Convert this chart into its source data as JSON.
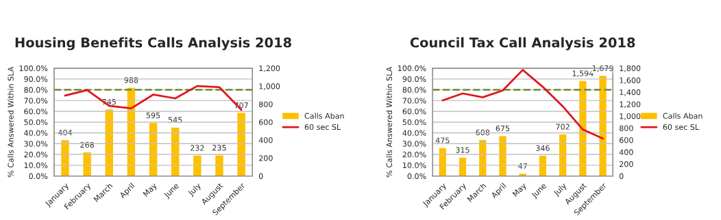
{
  "chart_data": [
    {
      "type": "bar",
      "title": "Housing Benefits Calls Analysis 2018",
      "ylabel": "% Calls Answered Within SLA",
      "categories": [
        "January",
        "February",
        "March",
        "April",
        "May",
        "June",
        "July",
        "August",
        "September"
      ],
      "series": [
        {
          "name": "Calls Aban",
          "axis": "y2",
          "color": "#ffc000",
          "values": [
            404,
            268,
            745,
            988,
            595,
            545,
            232,
            235,
            707
          ],
          "value_labels": [
            "404",
            "268",
            "745",
            "988",
            "595",
            "545",
            "232",
            "235",
            "707"
          ]
        },
        {
          "name": "60 sec SL",
          "type": "line",
          "color": "#e0141b",
          "values": [
            74.6,
            79.7,
            65.1,
            62.7,
            75.5,
            72.0,
            83.5,
            82.4,
            61.4
          ]
        }
      ],
      "ylim": [
        0,
        100
      ],
      "yticks": [
        {
          "value": 0,
          "label": "0.0%"
        },
        {
          "value": 10,
          "label": "10.0%"
        },
        {
          "value": 20,
          "label": "20.0%"
        },
        {
          "value": 30,
          "label": "30.0%"
        },
        {
          "value": 40,
          "label": "40.0%"
        },
        {
          "value": 50,
          "label": "50.0%"
        },
        {
          "value": 60,
          "label": "60.0%"
        },
        {
          "value": 70,
          "label": "70.0%"
        },
        {
          "value": 80,
          "label": "80.0%"
        },
        {
          "value": 90,
          "label": "90.0%"
        },
        {
          "value": 100,
          "label": "100.0%"
        }
      ],
      "y2lim": [
        0,
        1200
      ],
      "y2ticks": [
        0,
        200,
        400,
        600,
        800,
        {
          "value": 1000,
          "label": "1,000"
        },
        {
          "value": 1200,
          "label": "1,200"
        }
      ],
      "ref_lines": [
        {
          "axis": "y",
          "value": 80,
          "color": "#77933c",
          "line_style": "dashed"
        }
      ],
      "grid": "y",
      "legend": "right",
      "marker": "none",
      "line_style": "solid"
    },
    {
      "type": "bar",
      "title": "Council Tax Call Analysis 2018",
      "ylabel": "% Calls Answered Within SLA",
      "categories": [
        "January",
        "February",
        "March",
        "April",
        "May",
        "June",
        "July",
        "August",
        "September"
      ],
      "series": [
        {
          "name": "Calls Aban",
          "axis": "y2",
          "color": "#ffc000",
          "values": [
            475,
            315,
            608,
            675,
            47,
            346,
            702,
            1594,
            1679
          ],
          "value_labels": [
            "475",
            "315",
            "608",
            "675",
            "47",
            "346",
            "702",
            "1,594",
            "1,679"
          ]
        },
        {
          "name": "60 sec SL",
          "type": "line",
          "color": "#e0141b",
          "values": [
            70.1,
            76.6,
            73.0,
            79.3,
            98.4,
            82.7,
            64.6,
            43.1,
            34.7
          ]
        }
      ],
      "ylim": [
        0,
        100
      ],
      "yticks": [
        {
          "value": 0,
          "label": "0.0%"
        },
        {
          "value": 10,
          "label": "10.0%"
        },
        {
          "value": 20,
          "label": "20.0%"
        },
        {
          "value": 30,
          "label": "30.0%"
        },
        {
          "value": 40,
          "label": "40.0%"
        },
        {
          "value": 50,
          "label": "50.0%"
        },
        {
          "value": 60,
          "label": "60.0%"
        },
        {
          "value": 70,
          "label": "70.0%"
        },
        {
          "value": 80,
          "label": "80.0%"
        },
        {
          "value": 90,
          "label": "90.0%"
        },
        {
          "value": 100,
          "label": "100.0%"
        }
      ],
      "y2lim": [
        0,
        1800
      ],
      "y2ticks": [
        0,
        200,
        400,
        600,
        800,
        {
          "value": 1000,
          "label": "1,000"
        },
        {
          "value": 1200,
          "label": "1,200"
        },
        {
          "value": 1400,
          "label": "1,400"
        },
        {
          "value": 1600,
          "label": "1,600"
        },
        {
          "value": 1800,
          "label": "1,800"
        }
      ],
      "ref_lines": [
        {
          "axis": "y",
          "value": 80,
          "color": "#77933c",
          "line_style": "dashed"
        }
      ],
      "grid": "y",
      "legend": "right",
      "marker": "none",
      "line_style": "solid"
    }
  ]
}
